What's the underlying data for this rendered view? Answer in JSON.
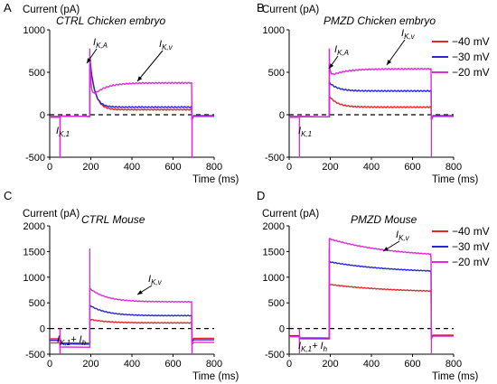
{
  "colors": {
    "red": "#e8262a",
    "blue": "#2424d8",
    "magenta": "#e02ad8",
    "axis": "#000000"
  },
  "chart_data": [
    {
      "panel": "A",
      "title": "CTRL Chicken embryo",
      "type": "line",
      "ylabel": "Current (pA)",
      "xlabel": "Time (ms)",
      "xlim": [
        0,
        800
      ],
      "ylim": [
        -500,
        1000
      ],
      "xticks": [
        0,
        200,
        400,
        600,
        800
      ],
      "yticks": [
        -500,
        0,
        500,
        1000
      ],
      "xtick_labels": [
        "0",
        "200",
        "400",
        "600",
        "800"
      ],
      "ytick_labels": [
        "-500",
        "0",
        "500",
        "1000"
      ],
      "legend": null,
      "annotations": [
        {
          "main": "I",
          "sub": "K,A"
        },
        {
          "main": "I",
          "sub": "K,v"
        },
        {
          "main": "I",
          "sub": "K,1"
        }
      ],
      "series": [
        {
          "color": "red",
          "holding": -40,
          "pre": -15,
          "peak": 650,
          "steady": 60,
          "tau": 25,
          "rise": 0
        },
        {
          "color": "blue",
          "holding": -45,
          "pre": -15,
          "peak": 680,
          "steady": 90,
          "tau": 22,
          "rise": 0
        },
        {
          "color": "magenta",
          "holding": -50,
          "pre": -15,
          "peak": 680,
          "steady": 375,
          "tau": 20,
          "rise": 60,
          "dip": 180
        }
      ]
    },
    {
      "panel": "B",
      "title": "PMZD Chicken embryo",
      "type": "line",
      "ylabel": "Current (pA)",
      "xlabel": "Time (ms)",
      "xlim": [
        0,
        800
      ],
      "ylim": [
        -500,
        1000
      ],
      "xticks": [
        0,
        200,
        400,
        600,
        800
      ],
      "yticks": [
        -500,
        0,
        500,
        1000
      ],
      "xtick_labels": [
        "0",
        "200",
        "400",
        "600",
        "800"
      ],
      "ytick_labels": [
        "-500",
        "0",
        "500",
        "1000"
      ],
      "legend": [
        "−40 mV",
        "−30 mV",
        "−20 mV"
      ],
      "annotations": [
        {
          "main": "I",
          "sub": "K,A"
        },
        {
          "main": "I",
          "sub": "K,v"
        },
        {
          "main": "I",
          "sub": "K,1"
        }
      ],
      "series": [
        {
          "color": "red",
          "holding": -40,
          "pre": -20,
          "peak": 220,
          "steady": 90,
          "tau": 40,
          "rise": 0
        },
        {
          "color": "blue",
          "holding": -45,
          "pre": -20,
          "peak": 380,
          "steady": 280,
          "tau": 40,
          "rise": 0
        },
        {
          "color": "magenta",
          "holding": -50,
          "pre": -20,
          "peak": 590,
          "steady": 540,
          "tau": 20,
          "rise": 70,
          "dip": 450
        }
      ]
    },
    {
      "panel": "C",
      "title": "CTRL Mouse",
      "type": "line",
      "ylabel": "Current (pA)",
      "xlabel": "Time (ms)",
      "xlim": [
        0,
        800
      ],
      "ylim": [
        -500,
        2000
      ],
      "xticks": [
        0,
        200,
        400,
        600,
        800
      ],
      "yticks": [
        -500,
        0,
        500,
        1000,
        1500,
        2000
      ],
      "xtick_labels": [
        "0",
        "200",
        "400",
        "600",
        "800"
      ],
      "ytick_labels": [
        "-500",
        "0",
        "500",
        "1000",
        "1500",
        "2000"
      ],
      "legend": null,
      "annotations": [
        {
          "main": "I",
          "sub": "K,v"
        },
        {
          "main": "I",
          "sub": "K,1",
          "extra": "+ I",
          "extra_sub": "h"
        }
      ],
      "series": [
        {
          "color": "red",
          "holding": -220,
          "pre": -280,
          "peak": 180,
          "steady": 110,
          "tau": 80,
          "rise": 0
        },
        {
          "color": "blue",
          "holding": -250,
          "pre": -300,
          "peak": 450,
          "steady": 250,
          "tau": 80,
          "rise": 0
        },
        {
          "color": "magenta",
          "holding": -300,
          "pre": -360,
          "peak": 780,
          "steady": 520,
          "tau": 80,
          "rise": 0
        }
      ]
    },
    {
      "panel": "D",
      "title": "PMZD Mouse",
      "type": "line",
      "ylabel": "Current (pA)",
      "xlabel": "Time (ms)",
      "xlim": [
        0,
        800
      ],
      "ylim": [
        -500,
        2000
      ],
      "xticks": [
        0,
        200,
        400,
        600,
        800
      ],
      "yticks": [
        -500,
        0,
        500,
        1000,
        1500,
        2000
      ],
      "xtick_labels": [
        "0",
        "200",
        "400",
        "600",
        "800"
      ],
      "ytick_labels": [
        "-500",
        "0",
        "500",
        "1000",
        "1500",
        "2000"
      ],
      "legend": [
        "−40 mV",
        "−30 mV",
        "−20 mV"
      ],
      "annotations": [
        {
          "main": "I",
          "sub": "K,v"
        },
        {
          "main": "I",
          "sub": "K,1",
          "extra": "+ I",
          "extra_sub": "h"
        }
      ],
      "series": [
        {
          "color": "red",
          "holding": -160,
          "pre": -180,
          "peak": 860,
          "steady": 700,
          "tau": 300,
          "rise": 0
        },
        {
          "color": "blue",
          "holding": -170,
          "pre": -190,
          "peak": 1300,
          "steady": 1080,
          "tau": 300,
          "rise": 0
        },
        {
          "color": "magenta",
          "holding": -180,
          "pre": -200,
          "peak": 1750,
          "steady": 1380,
          "tau": 300,
          "rise": 0
        }
      ]
    }
  ]
}
